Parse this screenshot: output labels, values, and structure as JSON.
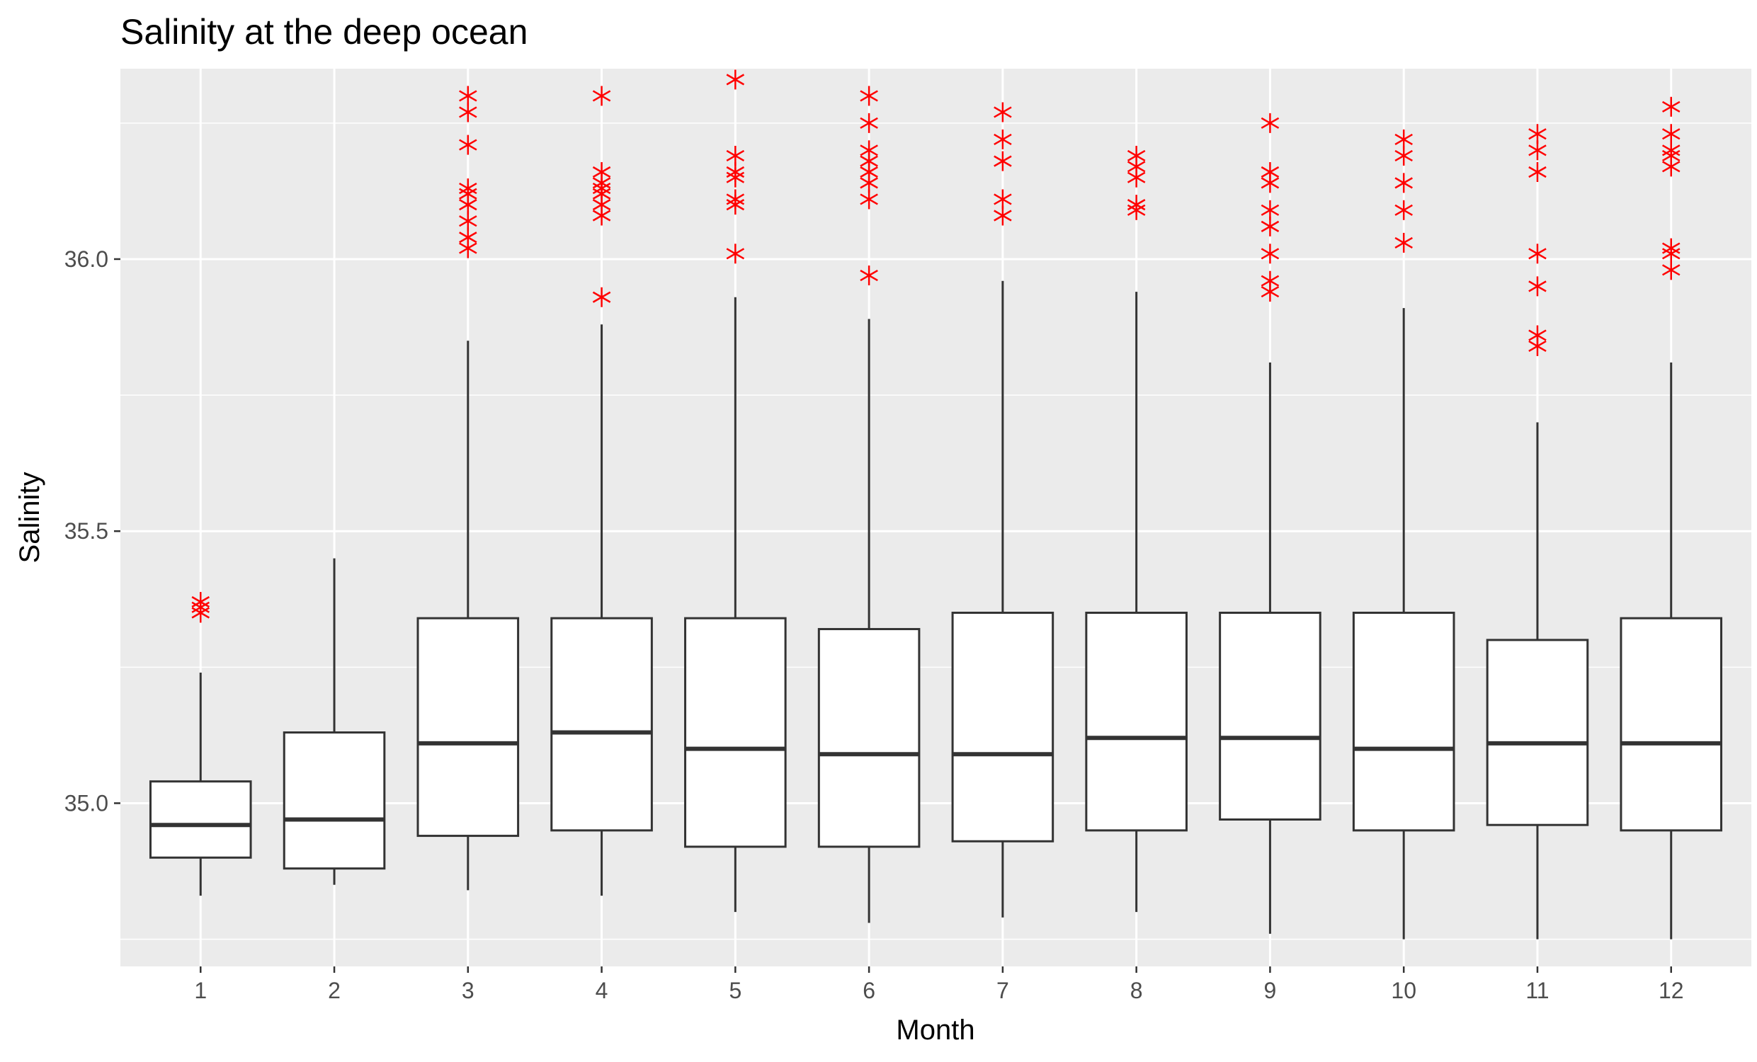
{
  "chart_data": {
    "type": "boxplot",
    "title": "Salinity at the deep ocean",
    "xlabel": "Month",
    "ylabel": "Salinity",
    "categories": [
      "1",
      "2",
      "3",
      "4",
      "5",
      "6",
      "7",
      "8",
      "9",
      "10",
      "11",
      "12"
    ],
    "y_ticks": [
      "35.0",
      "35.5",
      "36.0"
    ],
    "ylim": [
      34.7,
      36.35
    ],
    "grid": true,
    "box_fill": "#ffffff",
    "box_line_color": "#333333",
    "outlier_color": "#ff0000",
    "outlier_shape": "asterisk",
    "panel_background": "#ebebeb",
    "boxes": [
      {
        "month": "1",
        "whisker_low": 34.83,
        "q1": 34.9,
        "median": 34.96,
        "q3": 35.04,
        "whisker_high": 35.24,
        "outliers": [
          35.35,
          35.36,
          35.37
        ]
      },
      {
        "month": "2",
        "whisker_low": 34.85,
        "q1": 34.88,
        "median": 34.97,
        "q3": 35.13,
        "whisker_high": 35.45,
        "outliers": []
      },
      {
        "month": "3",
        "whisker_low": 34.84,
        "q1": 34.94,
        "median": 35.11,
        "q3": 35.34,
        "whisker_high": 35.85,
        "outliers": [
          36.02,
          36.04,
          36.07,
          36.1,
          36.12,
          36.13,
          36.21,
          36.27,
          36.3
        ]
      },
      {
        "month": "4",
        "whisker_low": 34.83,
        "q1": 34.95,
        "median": 35.13,
        "q3": 35.34,
        "whisker_high": 35.88,
        "outliers": [
          35.93,
          36.08,
          36.1,
          36.12,
          36.13,
          36.14,
          36.16,
          36.3
        ]
      },
      {
        "month": "5",
        "whisker_low": 34.8,
        "q1": 34.92,
        "median": 35.1,
        "q3": 35.34,
        "whisker_high": 35.93,
        "outliers": [
          36.01,
          36.1,
          36.11,
          36.15,
          36.16,
          36.19,
          36.33
        ]
      },
      {
        "month": "6",
        "whisker_low": 34.78,
        "q1": 34.92,
        "median": 35.09,
        "q3": 35.32,
        "whisker_high": 35.89,
        "outliers": [
          35.97,
          36.11,
          36.14,
          36.16,
          36.18,
          36.2,
          36.25,
          36.3
        ]
      },
      {
        "month": "7",
        "whisker_low": 34.79,
        "q1": 34.93,
        "median": 35.09,
        "q3": 35.35,
        "whisker_high": 35.96,
        "outliers": [
          36.08,
          36.11,
          36.18,
          36.22,
          36.27
        ]
      },
      {
        "month": "8",
        "whisker_low": 34.8,
        "q1": 34.95,
        "median": 35.12,
        "q3": 35.35,
        "whisker_high": 35.94,
        "outliers": [
          36.09,
          36.1,
          36.15,
          36.17,
          36.19
        ]
      },
      {
        "month": "9",
        "whisker_low": 34.76,
        "q1": 34.97,
        "median": 35.12,
        "q3": 35.35,
        "whisker_high": 35.81,
        "outliers": [
          35.94,
          35.96,
          36.01,
          36.06,
          36.09,
          36.14,
          36.16,
          36.25
        ]
      },
      {
        "month": "10",
        "whisker_low": 34.75,
        "q1": 34.95,
        "median": 35.1,
        "q3": 35.35,
        "whisker_high": 35.91,
        "outliers": [
          36.03,
          36.09,
          36.14,
          36.19,
          36.22
        ]
      },
      {
        "month": "11",
        "whisker_low": 34.75,
        "q1": 34.96,
        "median": 35.11,
        "q3": 35.3,
        "whisker_high": 35.7,
        "outliers": [
          35.84,
          35.86,
          35.95,
          36.01,
          36.16,
          36.2,
          36.23
        ]
      },
      {
        "month": "12",
        "whisker_low": 34.75,
        "q1": 34.95,
        "median": 35.11,
        "q3": 35.34,
        "whisker_high": 35.81,
        "outliers": [
          35.98,
          36.01,
          36.02,
          36.17,
          36.19,
          36.2,
          36.23,
          36.28
        ]
      }
    ]
  }
}
